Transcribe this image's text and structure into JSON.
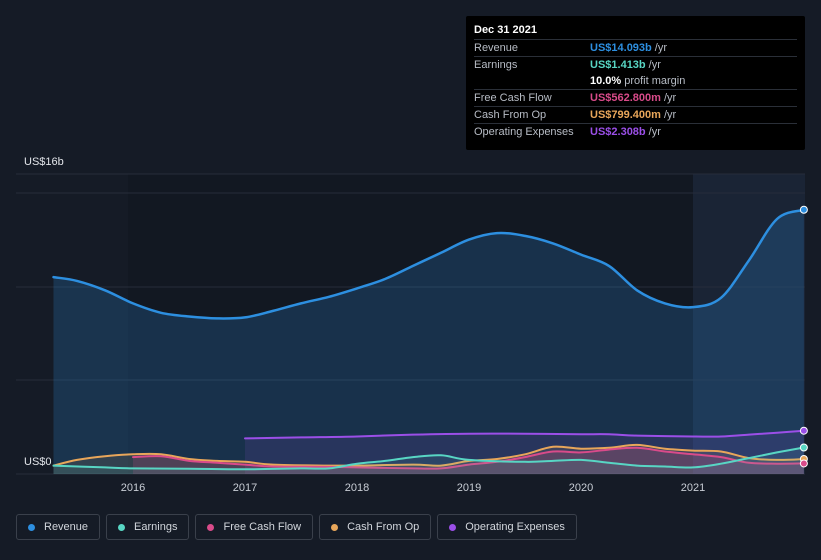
{
  "tooltip": {
    "date": "Dec 31 2021",
    "rows": [
      {
        "label": "Revenue",
        "value": "US$14.093b",
        "unit": "/yr",
        "color": "#2d8fe0"
      },
      {
        "label": "Earnings",
        "value": "US$1.413b",
        "unit": "/yr",
        "color": "#58d6c4"
      },
      {
        "label": "",
        "value": "10.0%",
        "unit": "profit margin",
        "color": "#ffffff"
      },
      {
        "label": "Free Cash Flow",
        "value": "US$562.800m",
        "unit": "/yr",
        "color": "#d94b8a"
      },
      {
        "label": "Cash From Op",
        "value": "US$799.400m",
        "unit": "/yr",
        "color": "#e8a65a"
      },
      {
        "label": "Operating Expenses",
        "value": "US$2.308b",
        "unit": "/yr",
        "color": "#9b4fe8"
      }
    ]
  },
  "chart_data": {
    "type": "area",
    "title": "",
    "xlabel": "",
    "ylabel": "",
    "y_top_label": "US$16b",
    "y_zero_label": "US$0",
    "ylim": [
      0,
      16
    ],
    "xlim": [
      2015.0,
      2021.99
    ],
    "x_ticks": [
      2016,
      2017,
      2018,
      2019,
      2020,
      2021
    ],
    "x_tick_labels": [
      "2016",
      "2017",
      "2018",
      "2019",
      "2020",
      "2021"
    ],
    "highlight_start": 2021.0,
    "series": [
      {
        "name": "Revenue",
        "color": "#2d8fe0",
        "points": [
          [
            2015.29,
            10.5
          ],
          [
            2015.5,
            10.3
          ],
          [
            2015.75,
            9.8
          ],
          [
            2016.0,
            9.1
          ],
          [
            2016.25,
            8.6
          ],
          [
            2016.5,
            8.4
          ],
          [
            2016.75,
            8.3
          ],
          [
            2017.0,
            8.35
          ],
          [
            2017.25,
            8.7
          ],
          [
            2017.5,
            9.1
          ],
          [
            2017.75,
            9.45
          ],
          [
            2018.0,
            9.9
          ],
          [
            2018.25,
            10.4
          ],
          [
            2018.5,
            11.1
          ],
          [
            2018.75,
            11.8
          ],
          [
            2019.0,
            12.5
          ],
          [
            2019.25,
            12.85
          ],
          [
            2019.5,
            12.7
          ],
          [
            2019.75,
            12.3
          ],
          [
            2020.0,
            11.7
          ],
          [
            2020.25,
            11.1
          ],
          [
            2020.5,
            9.8
          ],
          [
            2020.75,
            9.1
          ],
          [
            2021.0,
            8.9
          ],
          [
            2021.25,
            9.4
          ],
          [
            2021.5,
            11.4
          ],
          [
            2021.75,
            13.6
          ],
          [
            2021.99,
            14.093
          ]
        ]
      },
      {
        "name": "Earnings",
        "color": "#58d6c4",
        "points": [
          [
            2015.29,
            0.45
          ],
          [
            2015.75,
            0.35
          ],
          [
            2016.0,
            0.3
          ],
          [
            2016.5,
            0.28
          ],
          [
            2017.0,
            0.25
          ],
          [
            2017.5,
            0.3
          ],
          [
            2017.75,
            0.3
          ],
          [
            2018.0,
            0.55
          ],
          [
            2018.25,
            0.7
          ],
          [
            2018.5,
            0.9
          ],
          [
            2018.75,
            1.0
          ],
          [
            2019.0,
            0.75
          ],
          [
            2019.5,
            0.65
          ],
          [
            2019.75,
            0.7
          ],
          [
            2020.0,
            0.75
          ],
          [
            2020.25,
            0.6
          ],
          [
            2020.5,
            0.45
          ],
          [
            2020.75,
            0.4
          ],
          [
            2021.0,
            0.35
          ],
          [
            2021.25,
            0.55
          ],
          [
            2021.5,
            0.85
          ],
          [
            2021.75,
            1.15
          ],
          [
            2021.99,
            1.413
          ]
        ]
      },
      {
        "name": "Free Cash Flow",
        "color": "#d94b8a",
        "points": [
          [
            2016.0,
            0.9
          ],
          [
            2016.25,
            0.95
          ],
          [
            2016.5,
            0.7
          ],
          [
            2016.75,
            0.6
          ],
          [
            2017.0,
            0.5
          ],
          [
            2017.25,
            0.4
          ],
          [
            2017.75,
            0.38
          ],
          [
            2018.0,
            0.35
          ],
          [
            2018.5,
            0.3
          ],
          [
            2018.75,
            0.3
          ],
          [
            2019.0,
            0.5
          ],
          [
            2019.25,
            0.65
          ],
          [
            2019.5,
            0.9
          ],
          [
            2019.75,
            1.2
          ],
          [
            2020.0,
            1.15
          ],
          [
            2020.25,
            1.3
          ],
          [
            2020.5,
            1.4
          ],
          [
            2020.75,
            1.2
          ],
          [
            2021.0,
            1.05
          ],
          [
            2021.25,
            0.9
          ],
          [
            2021.5,
            0.6
          ],
          [
            2021.75,
            0.55
          ],
          [
            2021.99,
            0.5628
          ]
        ]
      },
      {
        "name": "Cash From Op",
        "color": "#e8a65a",
        "points": [
          [
            2015.29,
            0.45
          ],
          [
            2015.5,
            0.75
          ],
          [
            2015.75,
            0.95
          ],
          [
            2016.0,
            1.05
          ],
          [
            2016.25,
            1.05
          ],
          [
            2016.5,
            0.8
          ],
          [
            2016.75,
            0.7
          ],
          [
            2017.0,
            0.65
          ],
          [
            2017.25,
            0.5
          ],
          [
            2017.75,
            0.45
          ],
          [
            2018.0,
            0.45
          ],
          [
            2018.5,
            0.5
          ],
          [
            2018.75,
            0.45
          ],
          [
            2019.0,
            0.7
          ],
          [
            2019.25,
            0.8
          ],
          [
            2019.5,
            1.05
          ],
          [
            2019.75,
            1.45
          ],
          [
            2020.0,
            1.35
          ],
          [
            2020.25,
            1.4
          ],
          [
            2020.5,
            1.55
          ],
          [
            2020.75,
            1.35
          ],
          [
            2021.0,
            1.25
          ],
          [
            2021.25,
            1.2
          ],
          [
            2021.5,
            0.85
          ],
          [
            2021.75,
            0.75
          ],
          [
            2021.99,
            0.7994
          ]
        ]
      },
      {
        "name": "Operating Expenses",
        "color": "#9b4fe8",
        "points": [
          [
            2017.0,
            1.9
          ],
          [
            2017.5,
            1.95
          ],
          [
            2018.0,
            2.0
          ],
          [
            2018.5,
            2.1
          ],
          [
            2019.0,
            2.15
          ],
          [
            2019.5,
            2.15
          ],
          [
            2020.0,
            2.12
          ],
          [
            2020.25,
            2.12
          ],
          [
            2020.5,
            2.05
          ],
          [
            2021.0,
            2.0
          ],
          [
            2021.25,
            2.0
          ],
          [
            2021.5,
            2.1
          ],
          [
            2021.75,
            2.2
          ],
          [
            2021.99,
            2.308
          ]
        ]
      }
    ]
  },
  "legend": [
    {
      "label": "Revenue",
      "color": "#2d8fe0"
    },
    {
      "label": "Earnings",
      "color": "#58d6c4"
    },
    {
      "label": "Free Cash Flow",
      "color": "#d94b8a"
    },
    {
      "label": "Cash From Op",
      "color": "#e8a65a"
    },
    {
      "label": "Operating Expenses",
      "color": "#9b4fe8"
    }
  ]
}
